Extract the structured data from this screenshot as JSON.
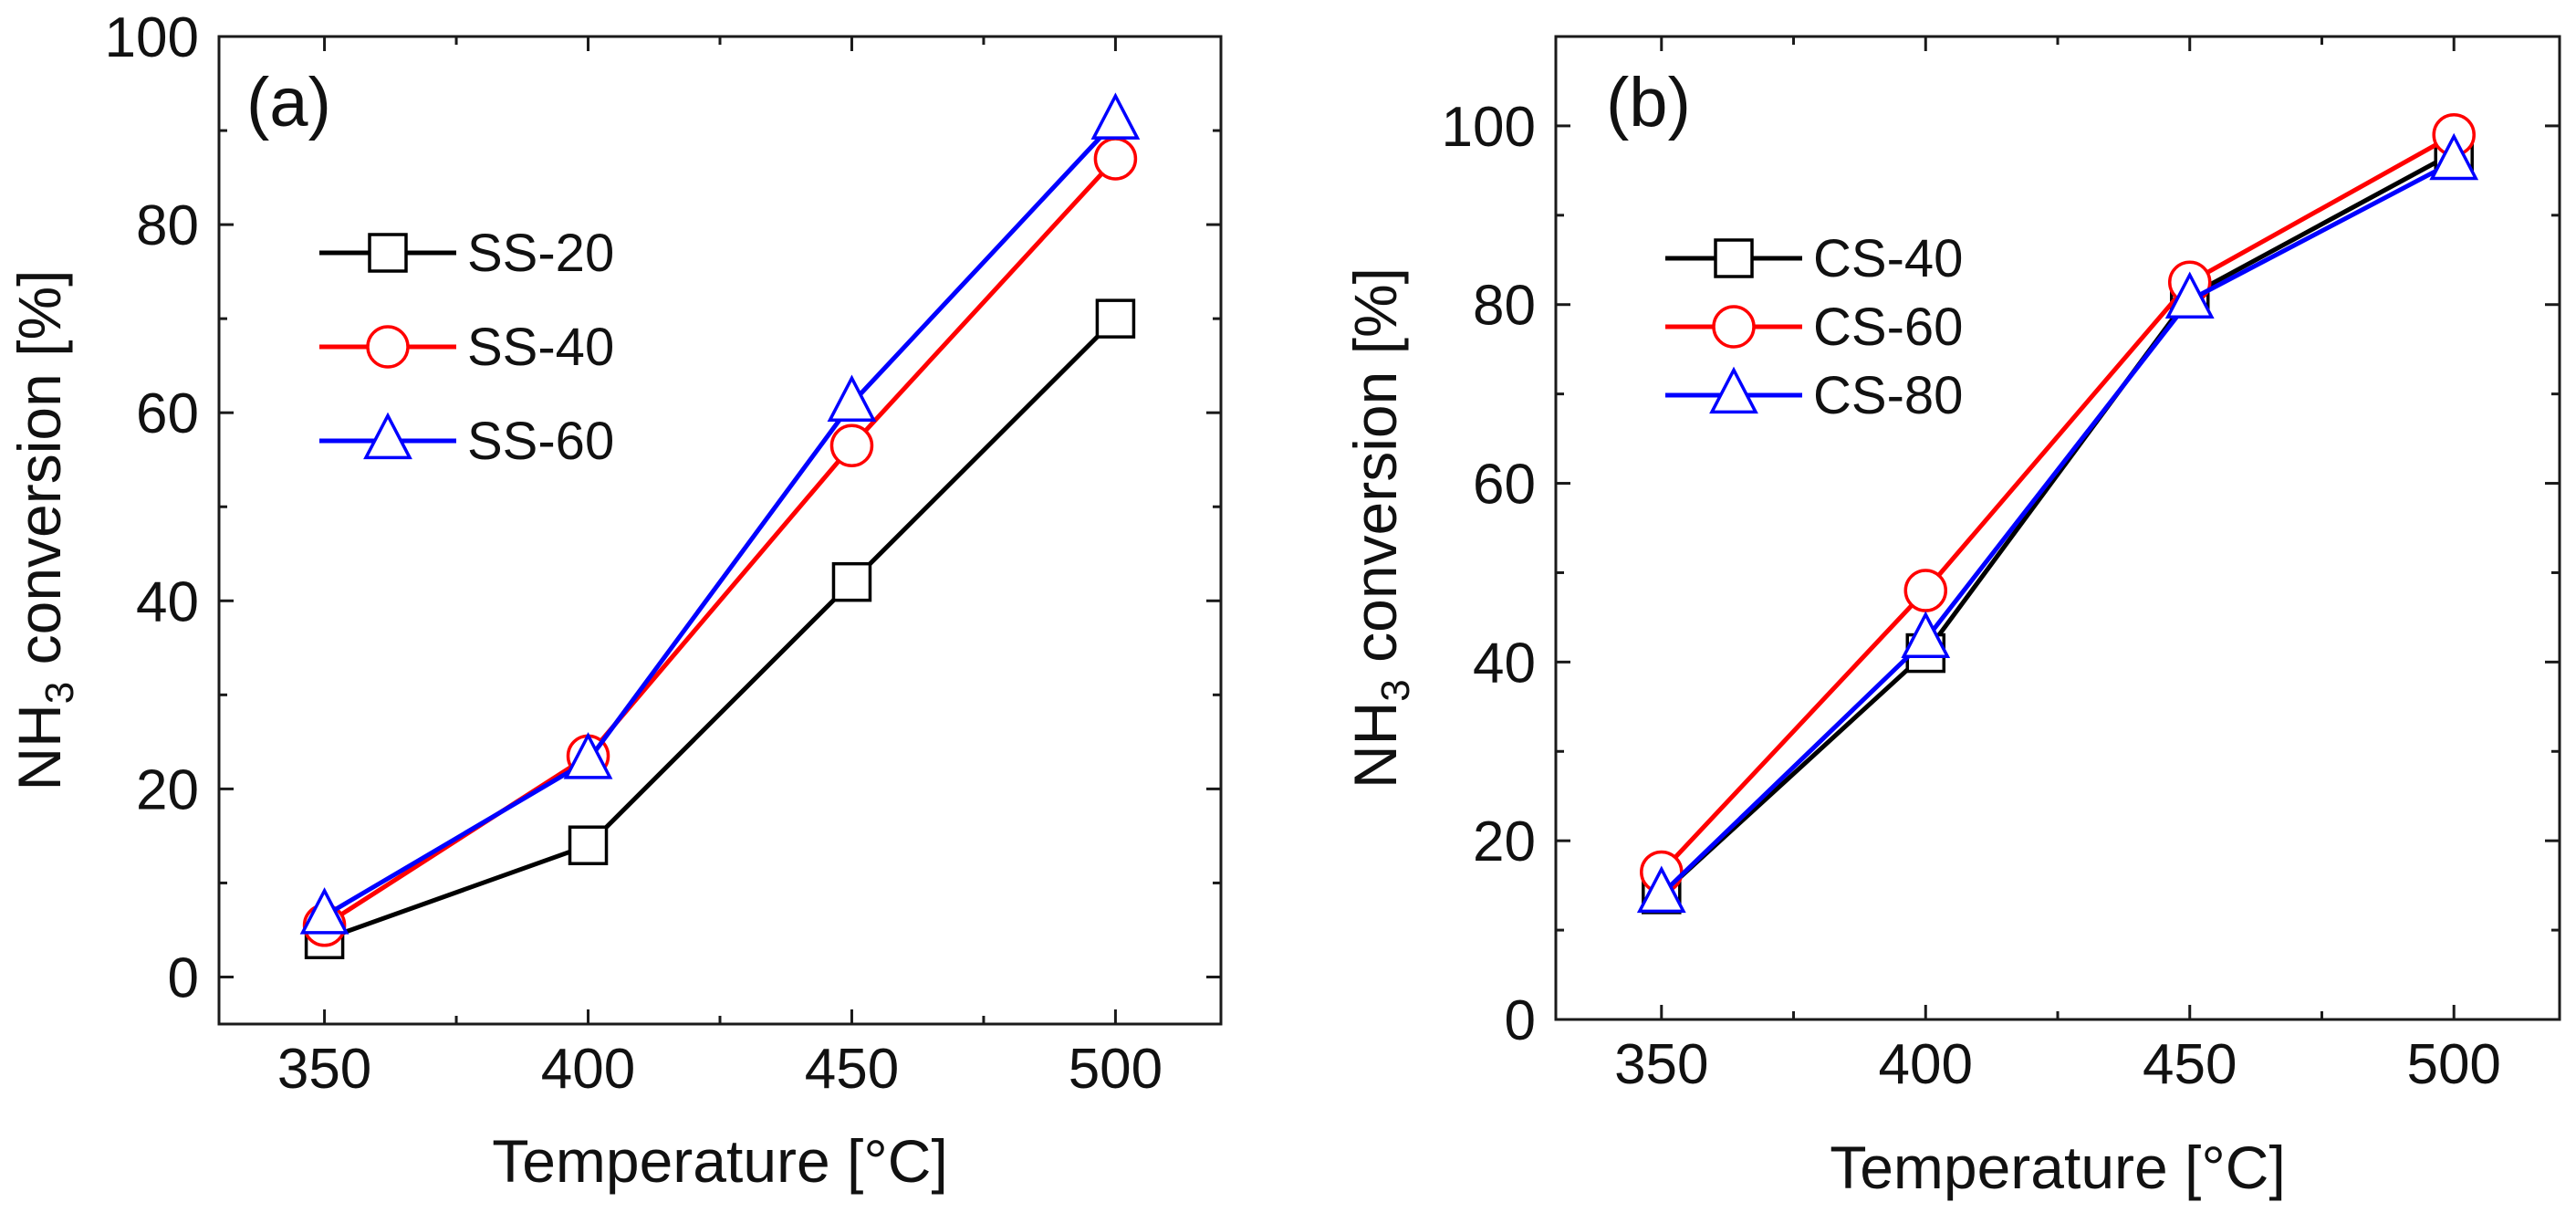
{
  "chart_data": [
    {
      "type": "line",
      "panel_label": "(a)",
      "title": "",
      "xlabel": "Temperature [°C]",
      "ylabel_main": "NH",
      "ylabel_sub": "3",
      "ylabel_rest": " conversion [%]",
      "x": [
        350,
        400,
        450,
        500
      ],
      "xlim": [
        330,
        520
      ],
      "ylim": [
        -5,
        100
      ],
      "xticks": [
        350,
        400,
        450,
        500
      ],
      "yticks": [
        0,
        20,
        40,
        60,
        80,
        100
      ],
      "grid": false,
      "legend_position": "upper-left",
      "series": [
        {
          "name": "SS-20",
          "color": "#000000",
          "marker": "square",
          "values": [
            4,
            14,
            42,
            70
          ]
        },
        {
          "name": "SS-40",
          "color": "#ff0000",
          "marker": "circle",
          "values": [
            5.5,
            23.5,
            56.5,
            87
          ]
        },
        {
          "name": "SS-60",
          "color": "#0000ff",
          "marker": "triangle",
          "values": [
            6.5,
            23,
            61,
            91
          ]
        }
      ]
    },
    {
      "type": "line",
      "panel_label": "(b)",
      "title": "",
      "xlabel": "Temperature [°C]",
      "ylabel_main": "NH",
      "ylabel_sub": "3",
      "ylabel_rest": " conversion [%]",
      "x": [
        350,
        400,
        450,
        500
      ],
      "xlim": [
        330,
        520
      ],
      "ylim": [
        0,
        110
      ],
      "xticks": [
        350,
        400,
        450,
        500
      ],
      "yticks": [
        0,
        20,
        40,
        60,
        80,
        100
      ],
      "grid": false,
      "legend_position": "upper-left",
      "series": [
        {
          "name": "CS-40",
          "color": "#000000",
          "marker": "square",
          "values": [
            14,
            41,
            81,
            97
          ]
        },
        {
          "name": "CS-60",
          "color": "#ff0000",
          "marker": "circle",
          "values": [
            16.5,
            48,
            82.5,
            99
          ]
        },
        {
          "name": "CS-80",
          "color": "#0000ff",
          "marker": "triangle",
          "values": [
            14,
            42.5,
            80.5,
            96
          ]
        }
      ]
    }
  ]
}
